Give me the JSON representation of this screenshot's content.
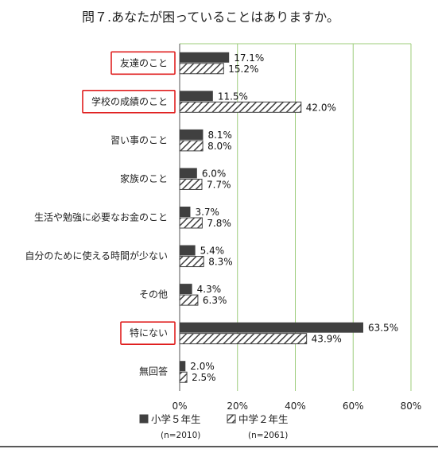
{
  "chart_data": {
    "type": "bar",
    "orientation": "horizontal",
    "title": "問７.あなたが困っていることはありますか。",
    "categories": [
      "友達のこと",
      "学校の成績のこと",
      "習い事のこと",
      "家族のこと",
      "生活や勉強に必要なお金のこと",
      "自分のために使える時間が少ない",
      "その他",
      "特にない",
      "無回答"
    ],
    "highlighted_categories": [
      "友達のこと",
      "学校の成績のこと",
      "特にない"
    ],
    "highlight_color": "#e02020",
    "series": [
      {
        "name": "小学５年生",
        "sample": "(n=2010)",
        "color": "#404040",
        "pattern": "solid",
        "values": [
          17.1,
          11.5,
          8.1,
          6.0,
          3.7,
          5.4,
          4.3,
          63.5,
          2.0
        ],
        "value_labels": [
          "17.1%",
          "11.5%",
          "8.1%",
          "6.0%",
          "3.7%",
          "5.4%",
          "4.3%",
          "63.5%",
          "2.0%"
        ]
      },
      {
        "name": "中学２年生",
        "sample": "(n=2061)",
        "color": "#404040",
        "pattern": "hatched",
        "values": [
          15.2,
          42.0,
          8.0,
          7.7,
          7.8,
          8.3,
          6.3,
          43.9,
          2.5
        ],
        "value_labels": [
          "15.2%",
          "42.0%",
          "8.0%",
          "7.7%",
          "7.8%",
          "8.3%",
          "6.3%",
          "43.9%",
          "2.5%"
        ]
      }
    ],
    "xlim": [
      0,
      80
    ],
    "xticks": [
      0,
      20,
      40,
      60,
      80
    ],
    "xtick_labels": [
      "0%",
      "20%",
      "40%",
      "60%",
      "80%"
    ],
    "grid": "vertical",
    "grid_color": "#9ccc7a",
    "legend": "bottom"
  }
}
